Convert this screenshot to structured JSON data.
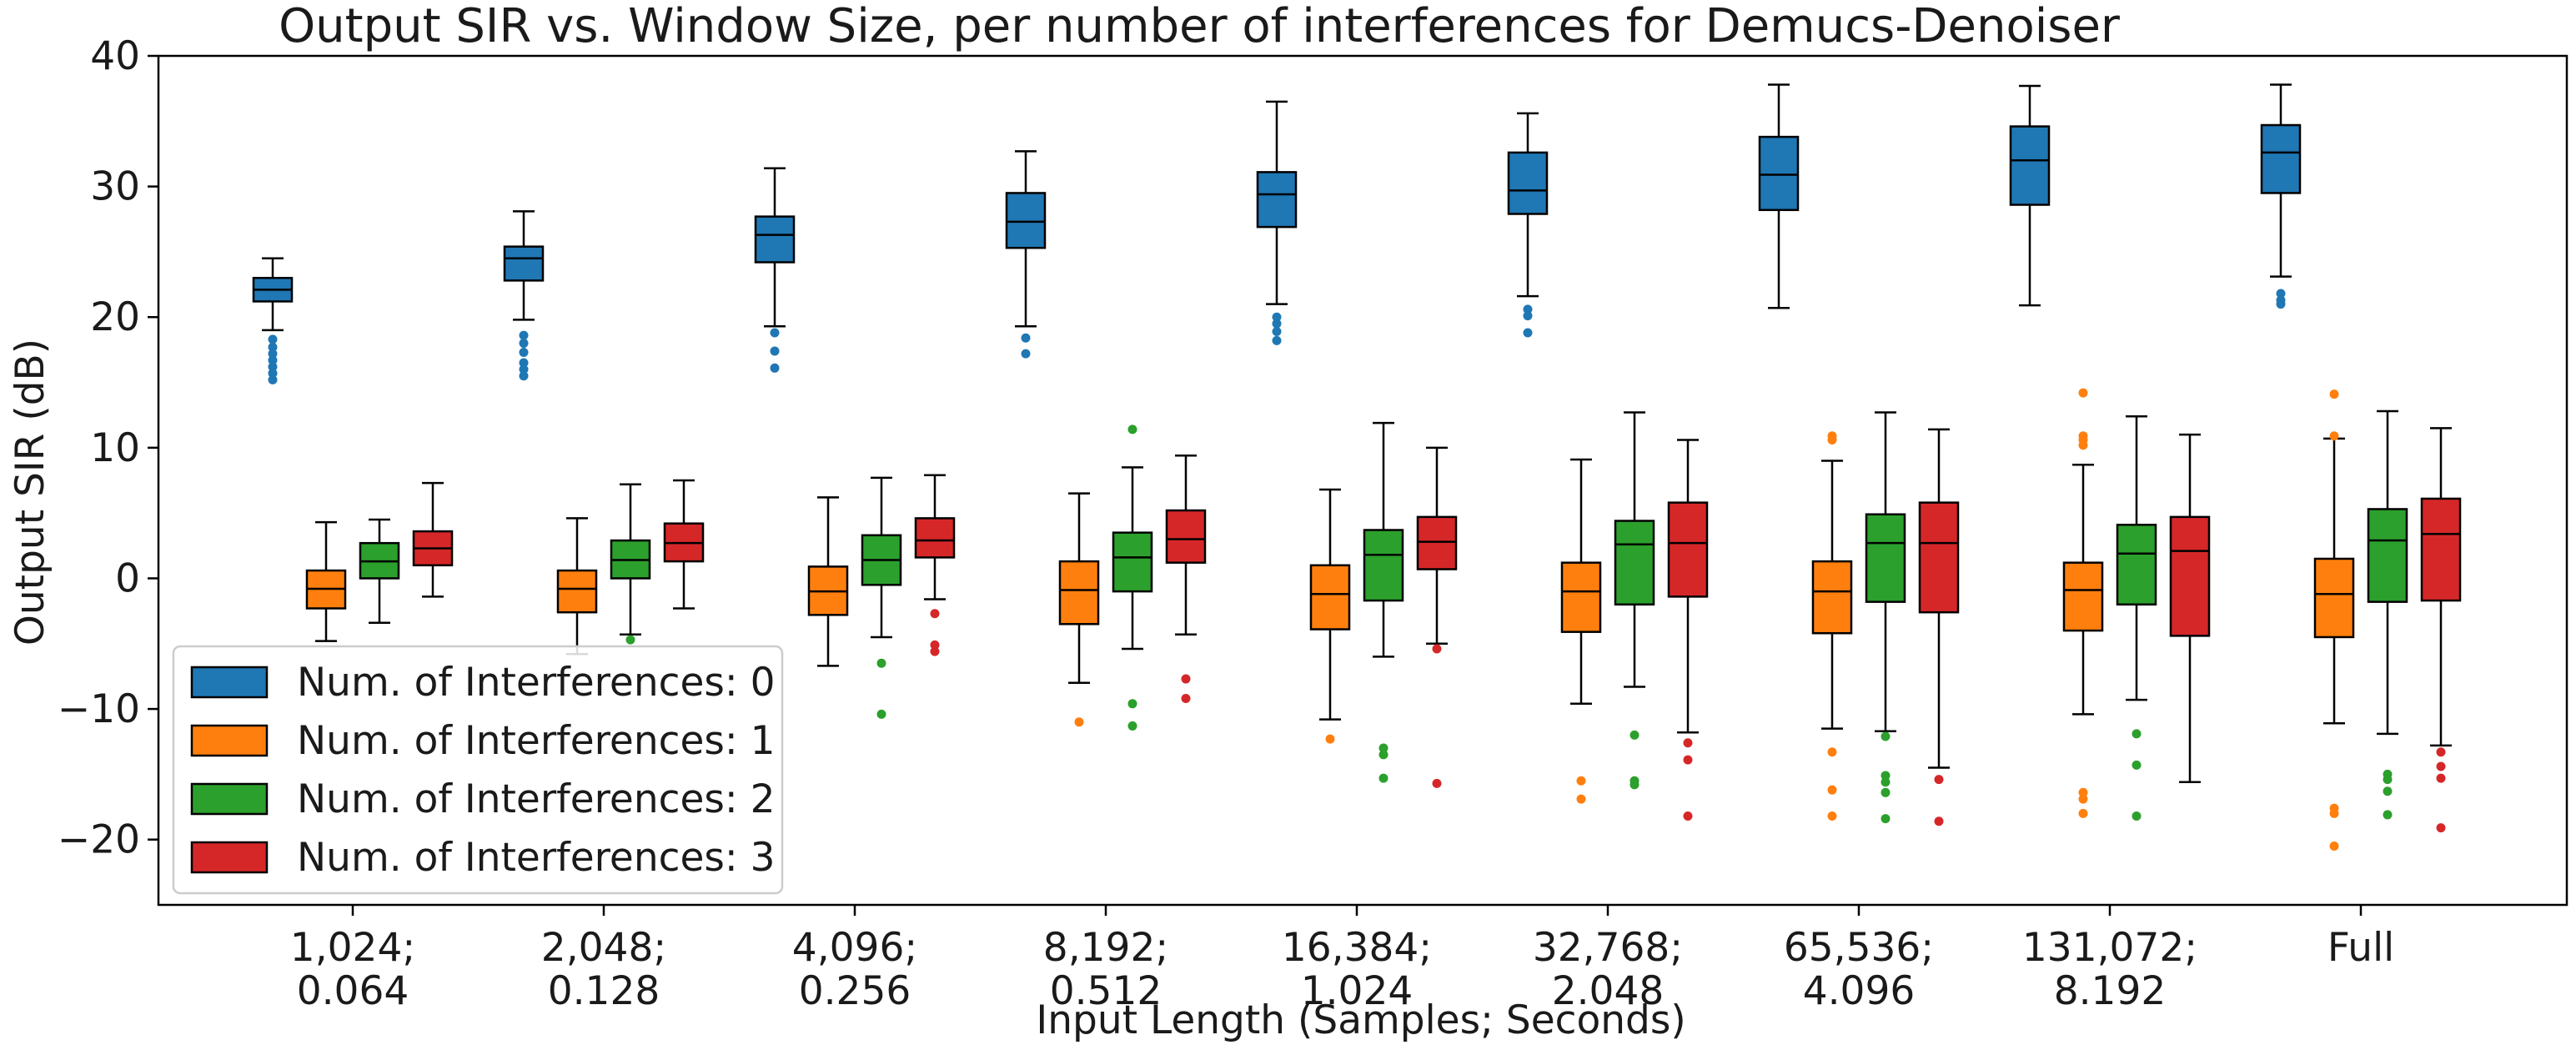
{
  "chart_data": {
    "type": "boxplot",
    "title": "Output SIR vs. Window Size, per number of interferences for Demucs-Denoiser",
    "xlabel": "Input Length (Samples; Seconds)",
    "ylabel": "Output SIR (dB)",
    "ylim": [
      -25,
      40
    ],
    "yticks": [
      -20,
      -10,
      0,
      10,
      20,
      30,
      40
    ],
    "ytick_labels": [
      "−20",
      "−10",
      "0",
      "10",
      "20",
      "30",
      "40"
    ],
    "grid": false,
    "legend_position": "lower-left",
    "categories": [
      {
        "line1": "1,024;",
        "line2": "0.064"
      },
      {
        "line1": "2,048;",
        "line2": "0.128"
      },
      {
        "line1": "4,096;",
        "line2": "0.256"
      },
      {
        "line1": "8,192;",
        "line2": "0.512"
      },
      {
        "line1": "16,384;",
        "line2": "1.024"
      },
      {
        "line1": "32,768;",
        "line2": "2.048"
      },
      {
        "line1": "65,536;",
        "line2": "4.096"
      },
      {
        "line1": "131,072;",
        "line2": "8.192"
      },
      {
        "line1": "Full",
        "line2": ""
      }
    ],
    "series": [
      {
        "name": "Num. of Interferences: 0",
        "color": "#1f77b4",
        "boxes": [
          {
            "whislo": 19.0,
            "q1": 21.2,
            "med": 22.1,
            "q3": 23.0,
            "whishi": 24.5,
            "fliers": [
              18.3,
              17.7,
              17.2,
              16.7,
              16.2,
              15.7,
              15.2
            ]
          },
          {
            "whislo": 19.8,
            "q1": 22.8,
            "med": 24.5,
            "q3": 25.4,
            "whishi": 28.1,
            "fliers": [
              18.6,
              18.0,
              17.3,
              16.5,
              16.0,
              15.5
            ]
          },
          {
            "whislo": 19.3,
            "q1": 24.2,
            "med": 26.3,
            "q3": 27.7,
            "whishi": 31.4,
            "fliers": [
              18.8,
              17.4,
              16.1
            ]
          },
          {
            "whislo": 19.3,
            "q1": 25.3,
            "med": 27.3,
            "q3": 29.5,
            "whishi": 32.7,
            "fliers": [
              18.4,
              17.2
            ]
          },
          {
            "whislo": 21.0,
            "q1": 26.9,
            "med": 29.4,
            "q3": 31.1,
            "whishi": 36.5,
            "fliers": [
              20.0,
              19.5,
              18.9,
              18.2
            ]
          },
          {
            "whislo": 21.6,
            "q1": 27.9,
            "med": 29.7,
            "q3": 32.6,
            "whishi": 35.6,
            "fliers": [
              20.6,
              20.1,
              18.8
            ]
          },
          {
            "whislo": 20.7,
            "q1": 28.2,
            "med": 30.9,
            "q3": 33.8,
            "whishi": 37.8,
            "fliers": []
          },
          {
            "whislo": 20.9,
            "q1": 28.6,
            "med": 32.0,
            "q3": 34.6,
            "whishi": 37.7,
            "fliers": []
          },
          {
            "whislo": 23.1,
            "q1": 29.5,
            "med": 32.6,
            "q3": 34.7,
            "whishi": 37.8,
            "fliers": [
              21.8,
              21.3,
              21.0
            ]
          }
        ]
      },
      {
        "name": "Num. of Interferences: 1",
        "color": "#ff7f0e",
        "boxes": [
          {
            "whislo": -4.8,
            "q1": -2.3,
            "med": -0.8,
            "q3": 0.6,
            "whishi": 4.3,
            "fliers": []
          },
          {
            "whislo": -5.8,
            "q1": -2.6,
            "med": -0.8,
            "q3": 0.6,
            "whishi": 4.6,
            "fliers": []
          },
          {
            "whislo": -6.7,
            "q1": -2.8,
            "med": -1.0,
            "q3": 0.9,
            "whishi": 6.2,
            "fliers": []
          },
          {
            "whislo": -8.0,
            "q1": -3.5,
            "med": -0.9,
            "q3": 1.3,
            "whishi": 6.5,
            "fliers": [
              -11.0
            ]
          },
          {
            "whislo": -10.8,
            "q1": -3.9,
            "med": -1.2,
            "q3": 1.0,
            "whishi": 6.8,
            "fliers": [
              -12.3
            ]
          },
          {
            "whislo": -9.6,
            "q1": -4.1,
            "med": -1.0,
            "q3": 1.2,
            "whishi": 9.1,
            "fliers": [
              -15.5,
              -16.9
            ]
          },
          {
            "whislo": -11.5,
            "q1": -4.2,
            "med": -1.0,
            "q3": 1.3,
            "whishi": 9.0,
            "fliers": [
              10.9,
              10.6,
              -13.3,
              -16.2,
              -18.2
            ]
          },
          {
            "whislo": -10.4,
            "q1": -4.0,
            "med": -0.9,
            "q3": 1.2,
            "whishi": 8.7,
            "fliers": [
              14.2,
              10.9,
              10.6,
              10.2,
              -16.4,
              -16.9,
              -18.0
            ]
          },
          {
            "whislo": -11.1,
            "q1": -4.5,
            "med": -1.2,
            "q3": 1.5,
            "whishi": 10.7,
            "fliers": [
              14.1,
              10.9,
              -17.6,
              -18.0,
              -20.5
            ]
          }
        ]
      },
      {
        "name": "Num. of Interferences: 2",
        "color": "#2ca02c",
        "boxes": [
          {
            "whislo": -3.4,
            "q1": 0.0,
            "med": 1.3,
            "q3": 2.7,
            "whishi": 4.5,
            "fliers": []
          },
          {
            "whislo": -4.3,
            "q1": 0.0,
            "med": 1.4,
            "q3": 2.9,
            "whishi": 7.2,
            "fliers": [
              -4.7
            ]
          },
          {
            "whislo": -4.5,
            "q1": -0.5,
            "med": 1.4,
            "q3": 3.3,
            "whishi": 7.7,
            "fliers": [
              -6.5,
              -10.4
            ]
          },
          {
            "whislo": -5.4,
            "q1": -1.0,
            "med": 1.6,
            "q3": 3.5,
            "whishi": 8.5,
            "fliers": [
              11.4,
              -9.6,
              -11.3
            ]
          },
          {
            "whislo": -6.0,
            "q1": -1.7,
            "med": 1.8,
            "q3": 3.7,
            "whishi": 11.9,
            "fliers": [
              -13.0,
              -13.5,
              -15.3
            ]
          },
          {
            "whislo": -8.3,
            "q1": -2.0,
            "med": 2.6,
            "q3": 4.4,
            "whishi": 12.7,
            "fliers": [
              -12.0,
              -15.5,
              -15.8
            ]
          },
          {
            "whislo": -11.7,
            "q1": -1.8,
            "med": 2.7,
            "q3": 4.9,
            "whishi": 12.7,
            "fliers": [
              -12.1,
              -15.1,
              -15.6,
              -16.4,
              -18.4
            ]
          },
          {
            "whislo": -9.3,
            "q1": -2.0,
            "med": 1.9,
            "q3": 4.1,
            "whishi": 12.4,
            "fliers": [
              -11.9,
              -14.3,
              -18.2
            ]
          },
          {
            "whislo": -11.9,
            "q1": -1.8,
            "med": 2.9,
            "q3": 5.3,
            "whishi": 12.8,
            "fliers": [
              -15.0,
              -15.4,
              -16.3,
              -18.1
            ]
          }
        ]
      },
      {
        "name": "Num. of Interferences: 3",
        "color": "#d62728",
        "boxes": [
          {
            "whislo": -1.4,
            "q1": 1.0,
            "med": 2.3,
            "q3": 3.6,
            "whishi": 7.3,
            "fliers": []
          },
          {
            "whislo": -2.3,
            "q1": 1.3,
            "med": 2.7,
            "q3": 4.2,
            "whishi": 7.5,
            "fliers": []
          },
          {
            "whislo": -1.6,
            "q1": 1.6,
            "med": 2.9,
            "q3": 4.6,
            "whishi": 7.9,
            "fliers": [
              -2.7,
              -5.1,
              -5.6
            ]
          },
          {
            "whislo": -4.3,
            "q1": 1.2,
            "med": 3.0,
            "q3": 5.2,
            "whishi": 9.4,
            "fliers": [
              -7.7,
              -9.2
            ]
          },
          {
            "whislo": -5.0,
            "q1": 0.7,
            "med": 2.8,
            "q3": 4.7,
            "whishi": 10.0,
            "fliers": [
              -5.4,
              -15.7
            ]
          },
          {
            "whislo": -11.8,
            "q1": -1.4,
            "med": 2.7,
            "q3": 5.8,
            "whishi": 10.6,
            "fliers": [
              -12.6,
              -13.9,
              -18.2
            ]
          },
          {
            "whislo": -14.5,
            "q1": -2.6,
            "med": 2.7,
            "q3": 5.8,
            "whishi": 11.4,
            "fliers": [
              -15.4,
              -18.6
            ]
          },
          {
            "whislo": -15.6,
            "q1": -4.4,
            "med": 2.1,
            "q3": 4.7,
            "whishi": 11.0,
            "fliers": []
          },
          {
            "whislo": -12.8,
            "q1": -1.7,
            "med": 3.4,
            "q3": 6.1,
            "whishi": 11.5,
            "fliers": [
              -13.3,
              -14.4,
              -15.3,
              -19.1
            ]
          }
        ]
      }
    ]
  }
}
